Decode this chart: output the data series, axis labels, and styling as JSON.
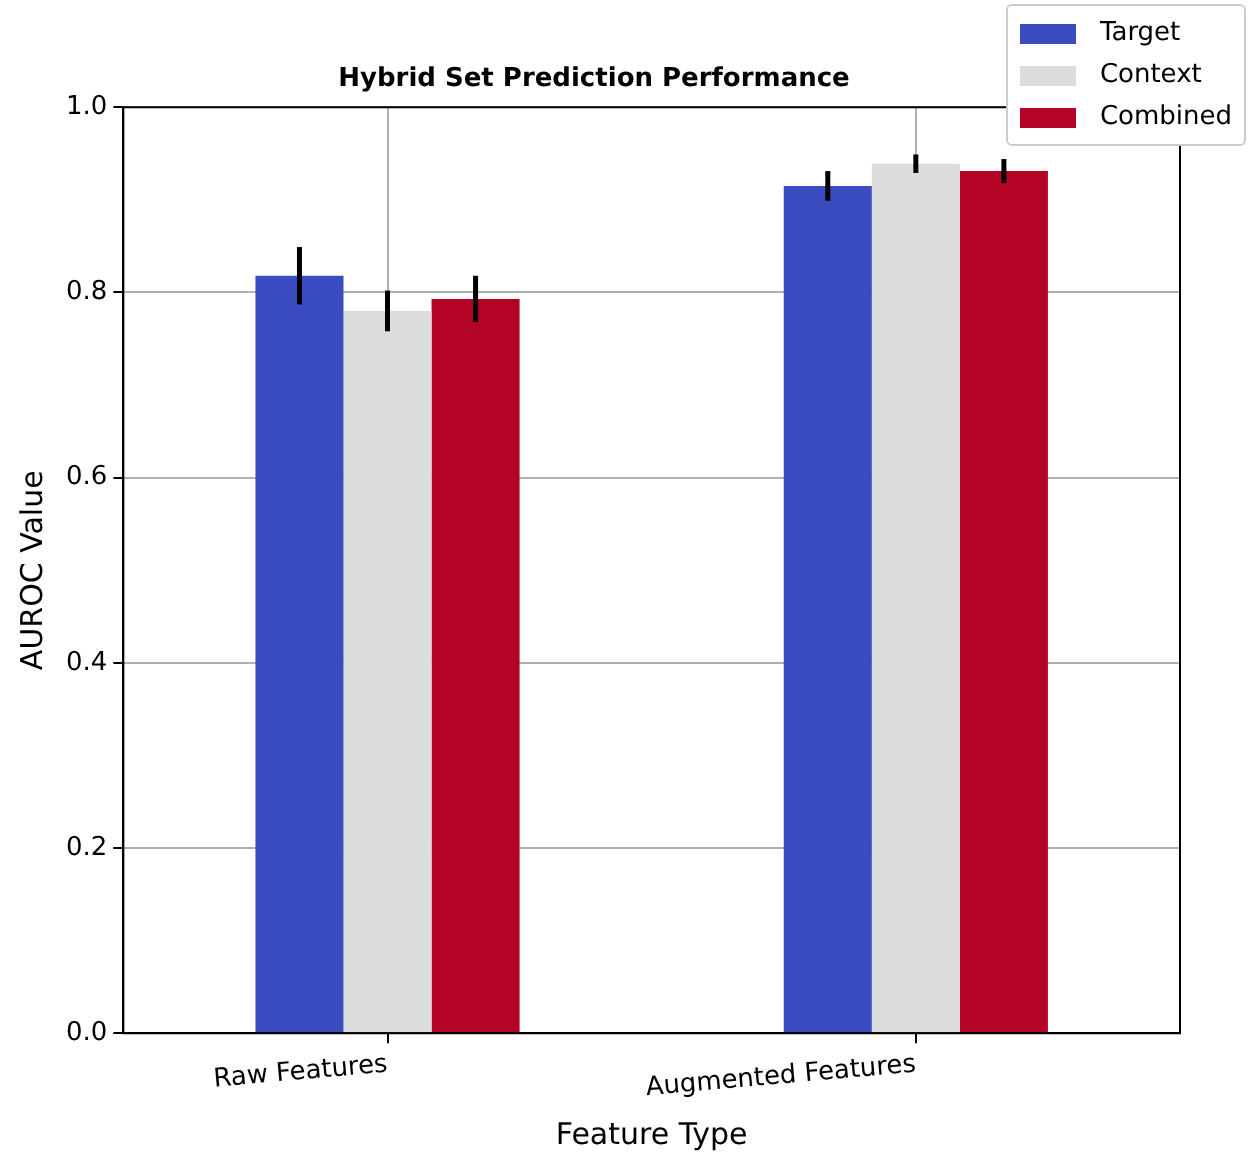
{
  "chart_data": {
    "type": "bar",
    "title": "Hybrid Set Prediction Performance",
    "xlabel": "Feature Type",
    "ylabel": "AUROC Value",
    "categories": [
      "Raw Features",
      "Augmented Features"
    ],
    "series": [
      {
        "name": "Target",
        "color": "#3b4cc0",
        "values": [
          0.818,
          0.915
        ],
        "errors": [
          0.031,
          0.016
        ]
      },
      {
        "name": "Context",
        "color": "#dddddd",
        "values": [
          0.78,
          0.939
        ],
        "errors": [
          0.022,
          0.01
        ]
      },
      {
        "name": "Combined",
        "color": "#b40426",
        "values": [
          0.793,
          0.931
        ],
        "errors": [
          0.025,
          0.013
        ]
      }
    ],
    "ylim": [
      0,
      1
    ],
    "yticks": [
      {
        "value": 0,
        "label": "0.0"
      },
      0.2,
      0.4,
      0.6,
      0.8,
      {
        "value": 1,
        "label": "1.0"
      }
    ],
    "grid": true,
    "legend": "top right"
  }
}
